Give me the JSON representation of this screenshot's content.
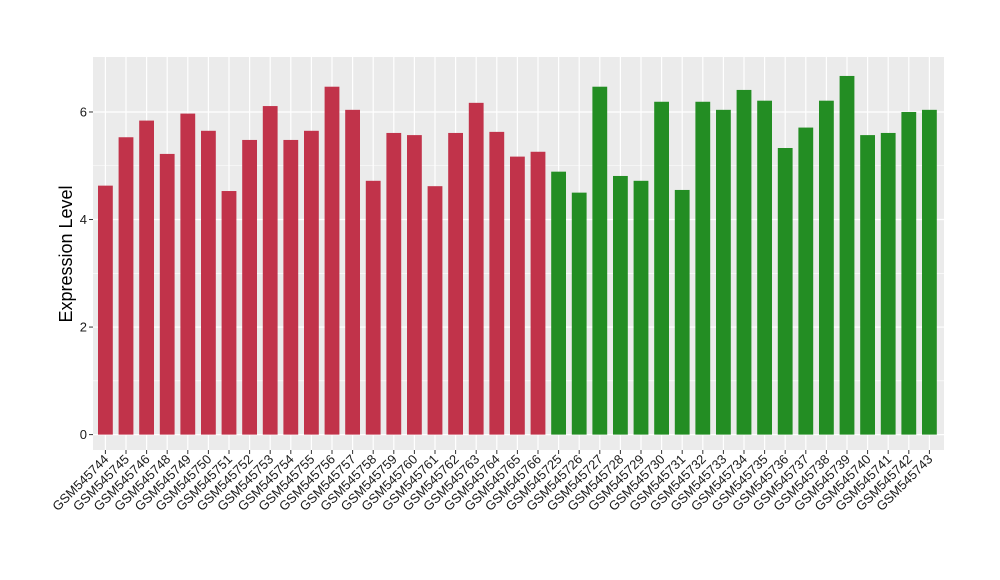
{
  "chart_data": {
    "type": "bar",
    "title": "",
    "xlabel": "",
    "ylabel": "Expression Level",
    "ylim": [
      0,
      7
    ],
    "yticks": [
      0,
      2,
      4,
      6
    ],
    "grid": true,
    "background": "#ebebeb",
    "gridColor": "#ffffff",
    "categories": [
      "GSM545744",
      "GSM545745",
      "GSM545746",
      "GSM545748",
      "GSM545749",
      "GSM545750",
      "GSM545751",
      "GSM545752",
      "GSM545753",
      "GSM545754",
      "GSM545755",
      "GSM545756",
      "GSM545757",
      "GSM545758",
      "GSM545759",
      "GSM545760",
      "GSM545761",
      "GSM545762",
      "GSM545763",
      "GSM545764",
      "GSM545765",
      "GSM545766",
      "GSM545725",
      "GSM545726",
      "GSM545727",
      "GSM545728",
      "GSM545729",
      "GSM545730",
      "GSM545731",
      "GSM545732",
      "GSM545733",
      "GSM545734",
      "GSM545735",
      "GSM545736",
      "GSM545737",
      "GSM545738",
      "GSM545739",
      "GSM545740",
      "GSM545741",
      "GSM545742",
      "GSM545743"
    ],
    "values": [
      4.63,
      5.53,
      5.84,
      5.22,
      5.97,
      5.65,
      4.53,
      5.48,
      6.11,
      5.48,
      5.65,
      6.47,
      6.04,
      4.72,
      5.61,
      5.57,
      4.62,
      5.61,
      6.17,
      5.63,
      5.17,
      5.26,
      4.89,
      4.5,
      6.47,
      4.81,
      4.72,
      6.19,
      4.55,
      6.19,
      6.04,
      6.41,
      6.21,
      5.33,
      5.71,
      6.21,
      6.67,
      5.57,
      5.61,
      6.0,
      6.04
    ],
    "groups": [
      {
        "color": "#c1334a",
        "count": 22
      },
      {
        "color": "#238d23",
        "count": 19
      }
    ]
  }
}
